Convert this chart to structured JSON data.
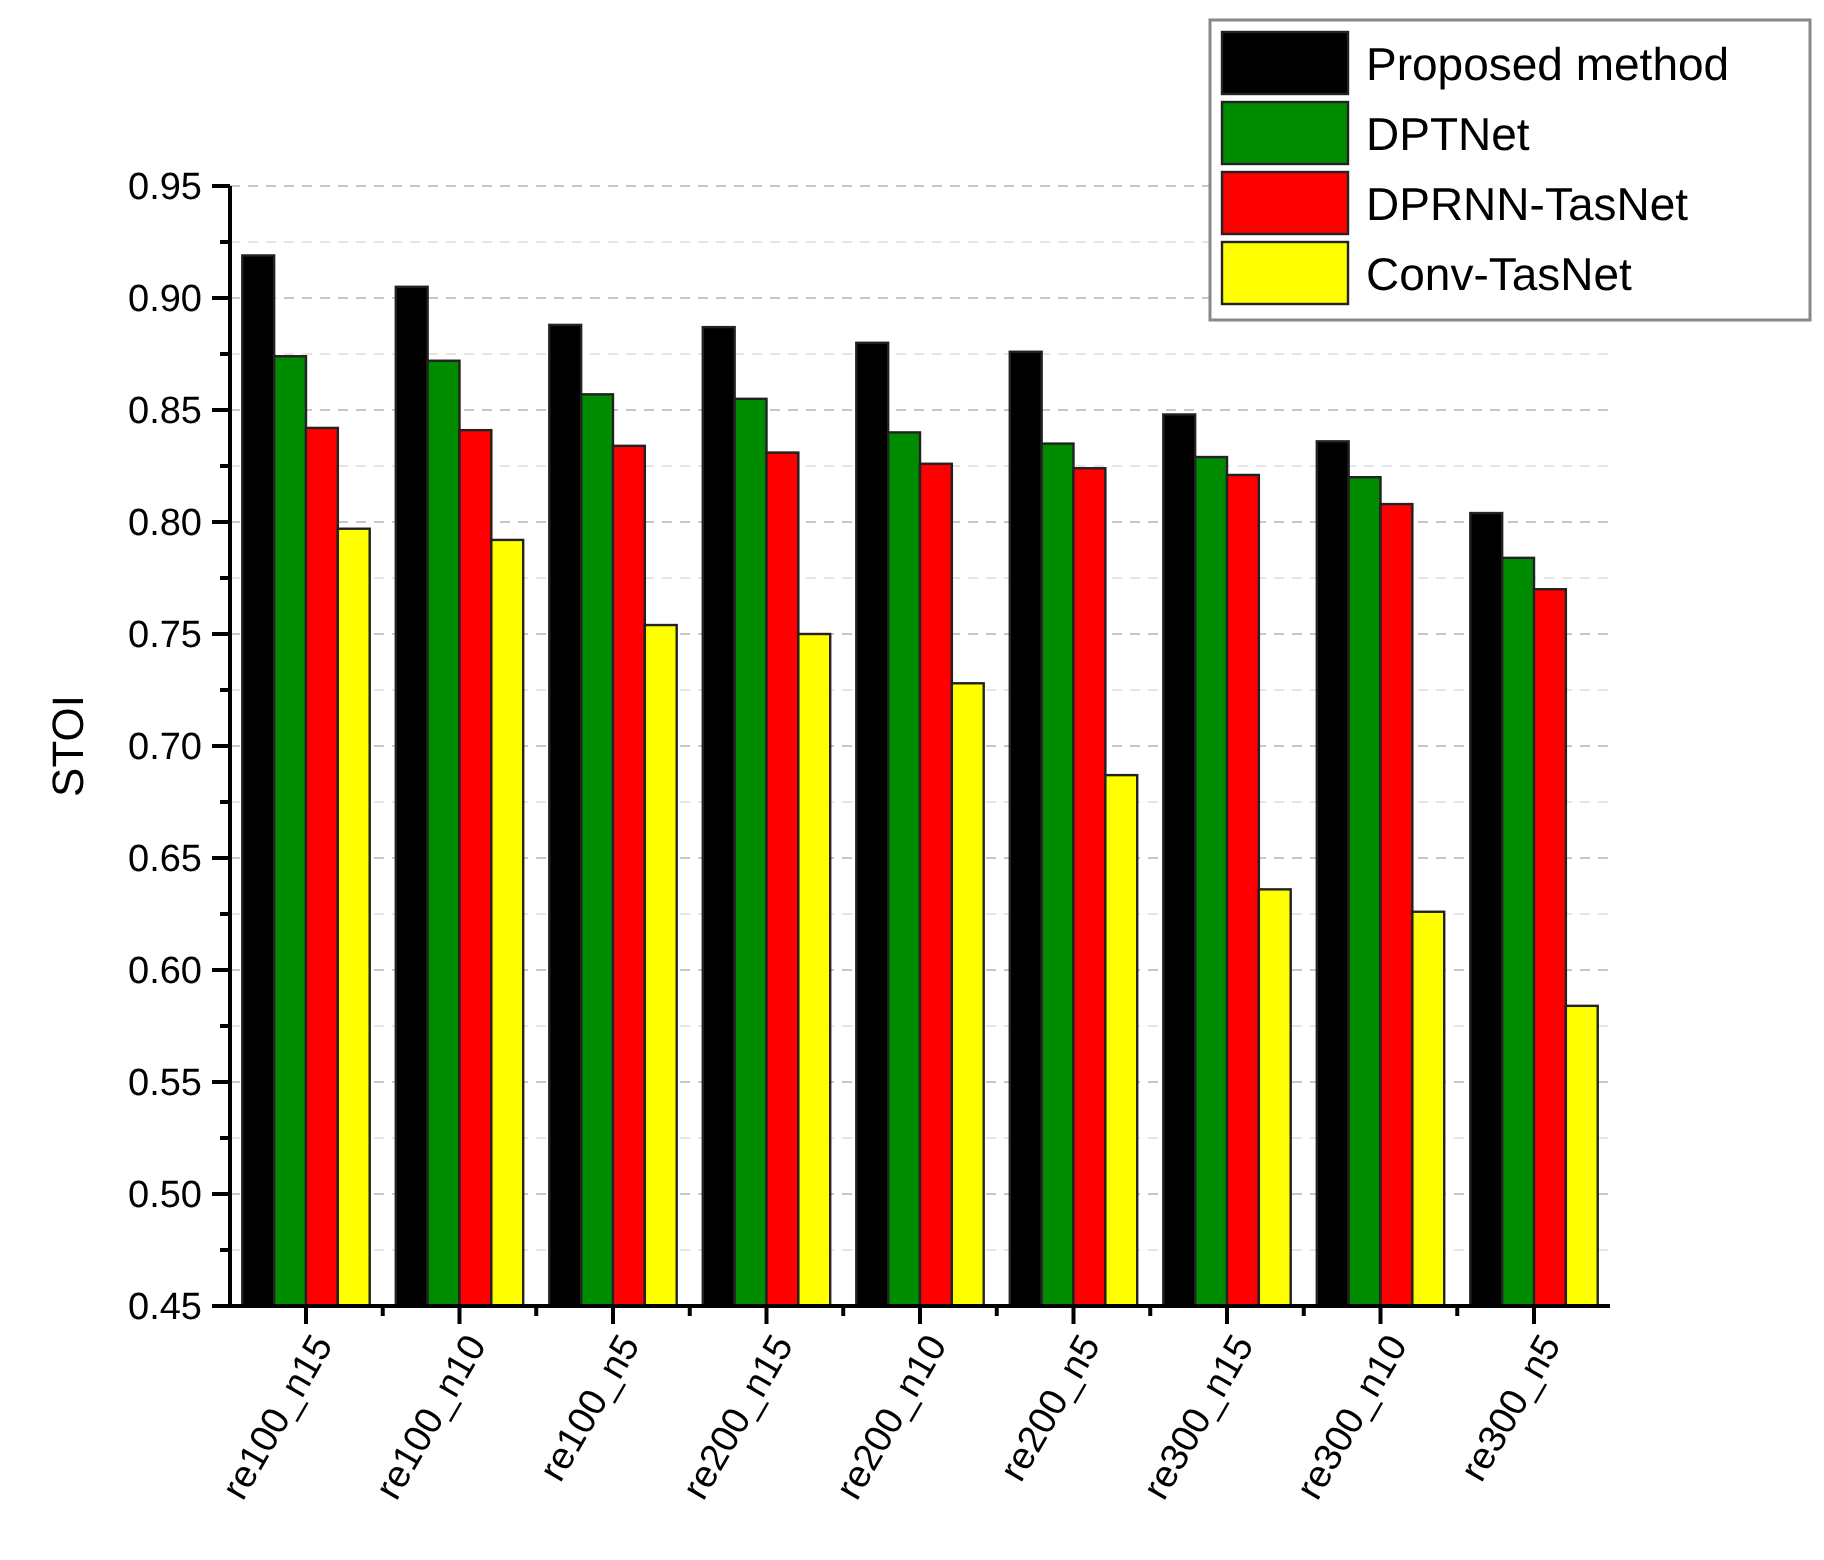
{
  "chart_data": {
    "type": "bar",
    "ylabel": "STOI",
    "categories": [
      "re100_n15",
      "re100_n10",
      "re100_n5",
      "re200_n15",
      "re200_n10",
      "re200_n5",
      "re300_n15",
      "re300_n10",
      "re300_n5"
    ],
    "series": [
      {
        "name": "Proposed method",
        "color": "#000000",
        "values": [
          0.919,
          0.905,
          0.888,
          0.887,
          0.88,
          0.876,
          0.848,
          0.836,
          0.804
        ]
      },
      {
        "name": "DPTNet",
        "color": "#008c00",
        "values": [
          0.874,
          0.872,
          0.857,
          0.855,
          0.84,
          0.835,
          0.829,
          0.82,
          0.784
        ]
      },
      {
        "name": "DPRNN-TasNet",
        "color": "#ff0000",
        "values": [
          0.842,
          0.841,
          0.834,
          0.831,
          0.826,
          0.824,
          0.821,
          0.808,
          0.77
        ]
      },
      {
        "name": "Conv-TasNet",
        "color": "#ffff00",
        "values": [
          0.797,
          0.792,
          0.754,
          0.75,
          0.728,
          0.687,
          0.636,
          0.626,
          0.584
        ]
      }
    ],
    "ylim": [
      0.45,
      0.95
    ],
    "yticks": [
      {
        "value": 0.45,
        "label": "0.45"
      },
      {
        "value": 0.475,
        "label": null
      },
      {
        "value": 0.5,
        "label": "0.50"
      },
      {
        "value": 0.525,
        "label": null
      },
      {
        "value": 0.55,
        "label": "0.55"
      },
      {
        "value": 0.575,
        "label": null
      },
      {
        "value": 0.6,
        "label": "0.60"
      },
      {
        "value": 0.625,
        "label": null
      },
      {
        "value": 0.65,
        "label": "0.65"
      },
      {
        "value": 0.675,
        "label": null
      },
      {
        "value": 0.7,
        "label": "0.70"
      },
      {
        "value": 0.725,
        "label": null
      },
      {
        "value": 0.75,
        "label": "0.75"
      },
      {
        "value": 0.775,
        "label": null
      },
      {
        "value": 0.8,
        "label": "0.80"
      },
      {
        "value": 0.825,
        "label": null
      },
      {
        "value": 0.85,
        "label": "0.85"
      },
      {
        "value": 0.875,
        "label": null
      },
      {
        "value": 0.9,
        "label": "0.90"
      },
      {
        "value": 0.925,
        "label": null
      },
      {
        "value": 0.95,
        "label": "0.95"
      }
    ],
    "grid": true,
    "legend": "top right"
  }
}
